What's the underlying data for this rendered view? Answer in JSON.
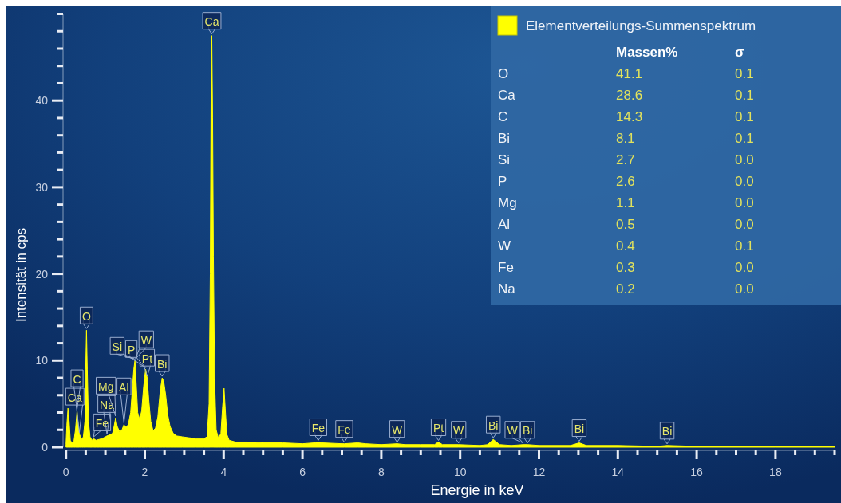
{
  "chart_data": [
    {
      "type": "area",
      "xlabel": "Energie in keV",
      "ylabel": "Intensität in cps",
      "x": [
        0,
        0.02,
        0.05,
        0.08,
        0.11,
        0.15,
        0.2,
        0.24,
        0.28,
        0.31,
        0.34,
        0.37,
        0.4,
        0.44,
        0.48,
        0.5,
        0.52,
        0.54,
        0.57,
        0.61,
        0.66,
        0.7,
        0.76,
        0.84,
        0.92,
        1.0,
        1.04,
        1.1,
        1.18,
        1.22,
        1.26,
        1.3,
        1.36,
        1.42,
        1.47,
        1.52,
        1.58,
        1.64,
        1.68,
        1.72,
        1.75,
        1.78,
        1.82,
        1.87,
        1.92,
        1.97,
        2.02,
        2.06,
        2.1,
        2.15,
        2.21,
        2.27,
        2.33,
        2.39,
        2.44,
        2.48,
        2.53,
        2.58,
        2.64,
        2.72,
        2.8,
        2.95,
        3.1,
        3.3,
        3.5,
        3.58,
        3.63,
        3.66,
        3.68,
        3.7,
        3.72,
        3.74,
        3.77,
        3.81,
        3.87,
        3.93,
        3.97,
        4.01,
        4.04,
        4.08,
        4.14,
        4.3,
        4.6,
        5.0,
        5.5,
        6.0,
        6.3,
        6.4,
        6.5,
        7.0,
        7.06,
        7.4,
        7.6,
        8.0,
        8.4,
        8.6,
        9.0,
        9.35,
        9.45,
        9.55,
        9.96,
        10.5,
        10.7,
        10.84,
        11.0,
        11.3,
        11.6,
        11.71,
        12.0,
        12.8,
        13.02,
        13.2,
        14.0,
        15.0,
        15.25,
        16.0,
        17.0,
        18.0,
        19.5
      ],
      "series": [
        {
          "name": "Elementverteilungs-Summenspektrum",
          "color": "#ffff00",
          "values": [
            0.3,
            2.5,
            4.5,
            3.0,
            0.8,
            0.5,
            0.7,
            2.0,
            4.2,
            2.5,
            1.5,
            1.2,
            0.9,
            1.2,
            3.0,
            9.0,
            13.5,
            9.0,
            3.0,
            1.2,
            0.8,
            1.0,
            0.8,
            0.9,
            1.0,
            1.2,
            1.3,
            1.4,
            1.6,
            2.4,
            3.4,
            2.4,
            1.8,
            2.0,
            2.6,
            2.3,
            2.6,
            4.0,
            6.5,
            9.0,
            10.0,
            7.5,
            4.0,
            3.2,
            4.2,
            7.0,
            9.0,
            8.0,
            5.5,
            3.0,
            1.9,
            2.2,
            3.5,
            6.5,
            8.0,
            7.6,
            6.0,
            3.8,
            2.4,
            1.6,
            1.3,
            1.2,
            1.1,
            1.0,
            1.0,
            1.2,
            5.0,
            20.0,
            40.0,
            47.5,
            38.0,
            22.0,
            8.0,
            2.0,
            1.0,
            1.6,
            4.5,
            6.8,
            4.5,
            1.5,
            0.8,
            0.6,
            0.6,
            0.5,
            0.5,
            0.4,
            0.5,
            0.6,
            0.5,
            0.4,
            0.4,
            0.5,
            0.4,
            0.3,
            0.4,
            0.3,
            0.3,
            0.3,
            0.6,
            0.3,
            0.3,
            0.2,
            0.3,
            0.9,
            0.3,
            0.2,
            0.3,
            0.3,
            0.2,
            0.2,
            0.5,
            0.2,
            0.2,
            0.1,
            0.2,
            0.1,
            0.1,
            0.1,
            0.1
          ]
        }
      ],
      "xlim": [
        0,
        19.5
      ],
      "xticks": [
        0,
        {
          "value": 0.5,
          "label": null
        },
        {
          "value": 1,
          "label": null
        },
        {
          "value": 1.5,
          "label": null
        },
        2,
        {
          "value": 2.5,
          "label": null
        },
        {
          "value": 3,
          "label": null
        },
        {
          "value": 3.5,
          "label": null
        },
        4,
        {
          "value": 4.5,
          "label": null
        },
        {
          "value": 5,
          "label": null
        },
        {
          "value": 5.5,
          "label": null
        },
        6,
        {
          "value": 6.5,
          "label": null
        },
        {
          "value": 7,
          "label": null
        },
        {
          "value": 7.5,
          "label": null
        },
        8,
        {
          "value": 8.5,
          "label": null
        },
        {
          "value": 9,
          "label": null
        },
        {
          "value": 9.5,
          "label": null
        },
        10,
        {
          "value": 10.5,
          "label": null
        },
        {
          "value": 11,
          "label": null
        },
        {
          "value": 11.5,
          "label": null
        },
        12,
        {
          "value": 12.5,
          "label": null
        },
        {
          "value": 13,
          "label": null
        },
        {
          "value": 13.5,
          "label": null
        },
        14,
        {
          "value": 14.5,
          "label": null
        },
        {
          "value": 15,
          "label": null
        },
        {
          "value": 15.5,
          "label": null
        },
        16,
        {
          "value": 16.5,
          "label": null
        },
        {
          "value": 17,
          "label": null
        },
        {
          "value": 17.5,
          "label": null
        },
        18,
        {
          "value": 18.5,
          "label": null
        },
        {
          "value": 19,
          "label": null
        },
        {
          "value": 19.5,
          "label": null
        }
      ],
      "ylim": [
        0,
        50
      ],
      "yticks": [
        0,
        {
          "value": 2,
          "label": null
        },
        {
          "value": 4,
          "label": null
        },
        {
          "value": 6,
          "label": null
        },
        {
          "value": 8,
          "label": null
        },
        10,
        {
          "value": 12,
          "label": null
        },
        {
          "value": 14,
          "label": null
        },
        {
          "value": 16,
          "label": null
        },
        {
          "value": 18,
          "label": null
        },
        20,
        {
          "value": 22,
          "label": null
        },
        {
          "value": 24,
          "label": null
        },
        {
          "value": 26,
          "label": null
        },
        {
          "value": 28,
          "label": null
        },
        30,
        {
          "value": 32,
          "label": null
        },
        {
          "value": 34,
          "label": null
        },
        {
          "value": 36,
          "label": null
        },
        {
          "value": 38,
          "label": null
        },
        40,
        {
          "value": 42,
          "label": null
        },
        {
          "value": 44,
          "label": null
        },
        {
          "value": 46,
          "label": null
        },
        {
          "value": 48,
          "label": null
        },
        {
          "value": 50,
          "label": null
        }
      ],
      "legend": "top right",
      "annotations": [
        {
          "text": "Ca",
          "x": 3.7,
          "y": 47.5
        },
        {
          "text": "O",
          "x": 0.52,
          "y": 13.5
        },
        {
          "text": "C",
          "x": 0.28,
          "y": 4.2
        },
        {
          "text": "Ca",
          "x": 0.34,
          "y": 1.5
        },
        {
          "text": "Fe",
          "x": 0.7,
          "y": 1.0
        },
        {
          "text": "Na",
          "x": 1.04,
          "y": 1.3
        },
        {
          "text": "Mg",
          "x": 1.26,
          "y": 3.4
        },
        {
          "text": "Al",
          "x": 1.47,
          "y": 2.6
        },
        {
          "text": "Si",
          "x": 1.74,
          "y": 10.0
        },
        {
          "text": "W",
          "x": 1.76,
          "y": 10.0
        },
        {
          "text": "Pt",
          "x": 2.06,
          "y": 8.0
        },
        {
          "text": "Bi",
          "x": 2.44,
          "y": 8.0
        },
        {
          "text": "P",
          "x": 2.02,
          "y": 9.0
        },
        {
          "text": "Fe",
          "x": 6.4,
          "y": 0.6
        },
        {
          "text": "Fe",
          "x": 7.06,
          "y": 0.4
        },
        {
          "text": "W",
          "x": 8.4,
          "y": 0.4
        },
        {
          "text": "Pt",
          "x": 9.45,
          "y": 0.6
        },
        {
          "text": "W",
          "x": 9.96,
          "y": 0.3
        },
        {
          "text": "Bi",
          "x": 10.84,
          "y": 0.9
        },
        {
          "text": "Bi",
          "x": 11.71,
          "y": 0.3
        },
        {
          "text": "W",
          "x": 11.6,
          "y": 0.3
        },
        {
          "text": "Bi",
          "x": 13.02,
          "y": 0.5
        },
        {
          "text": "Bi",
          "x": 15.25,
          "y": 0.2
        }
      ]
    },
    {
      "type": "other",
      "categories": [
        "O",
        "Ca",
        "C",
        "Bi",
        "Si",
        "P",
        "Mg",
        "Al",
        "W",
        "Fe",
        "Na"
      ],
      "series": [
        {
          "name": "Massen%",
          "values": [
            41.1,
            28.6,
            14.3,
            8.1,
            2.7,
            2.6,
            1.1,
            0.5,
            0.4,
            0.3,
            0.2
          ],
          "value_labels": [
            "41.1",
            "28.6",
            "14.3",
            "8.1",
            "2.7",
            "2.6",
            "1.1",
            "0.5",
            "0.4",
            "0.3",
            "0.2"
          ]
        },
        {
          "name": "σ",
          "values": [
            0.1,
            0.1,
            0.1,
            0.1,
            0.0,
            0.0,
            0.0,
            0.0,
            0.1,
            0.0,
            0.0
          ],
          "value_labels": [
            "0.1",
            "0.1",
            "0.1",
            "0.1",
            "0.0",
            "0.0",
            "0.0",
            "0.0",
            "0.1",
            "0.0",
            "0.0"
          ]
        }
      ]
    }
  ]
}
